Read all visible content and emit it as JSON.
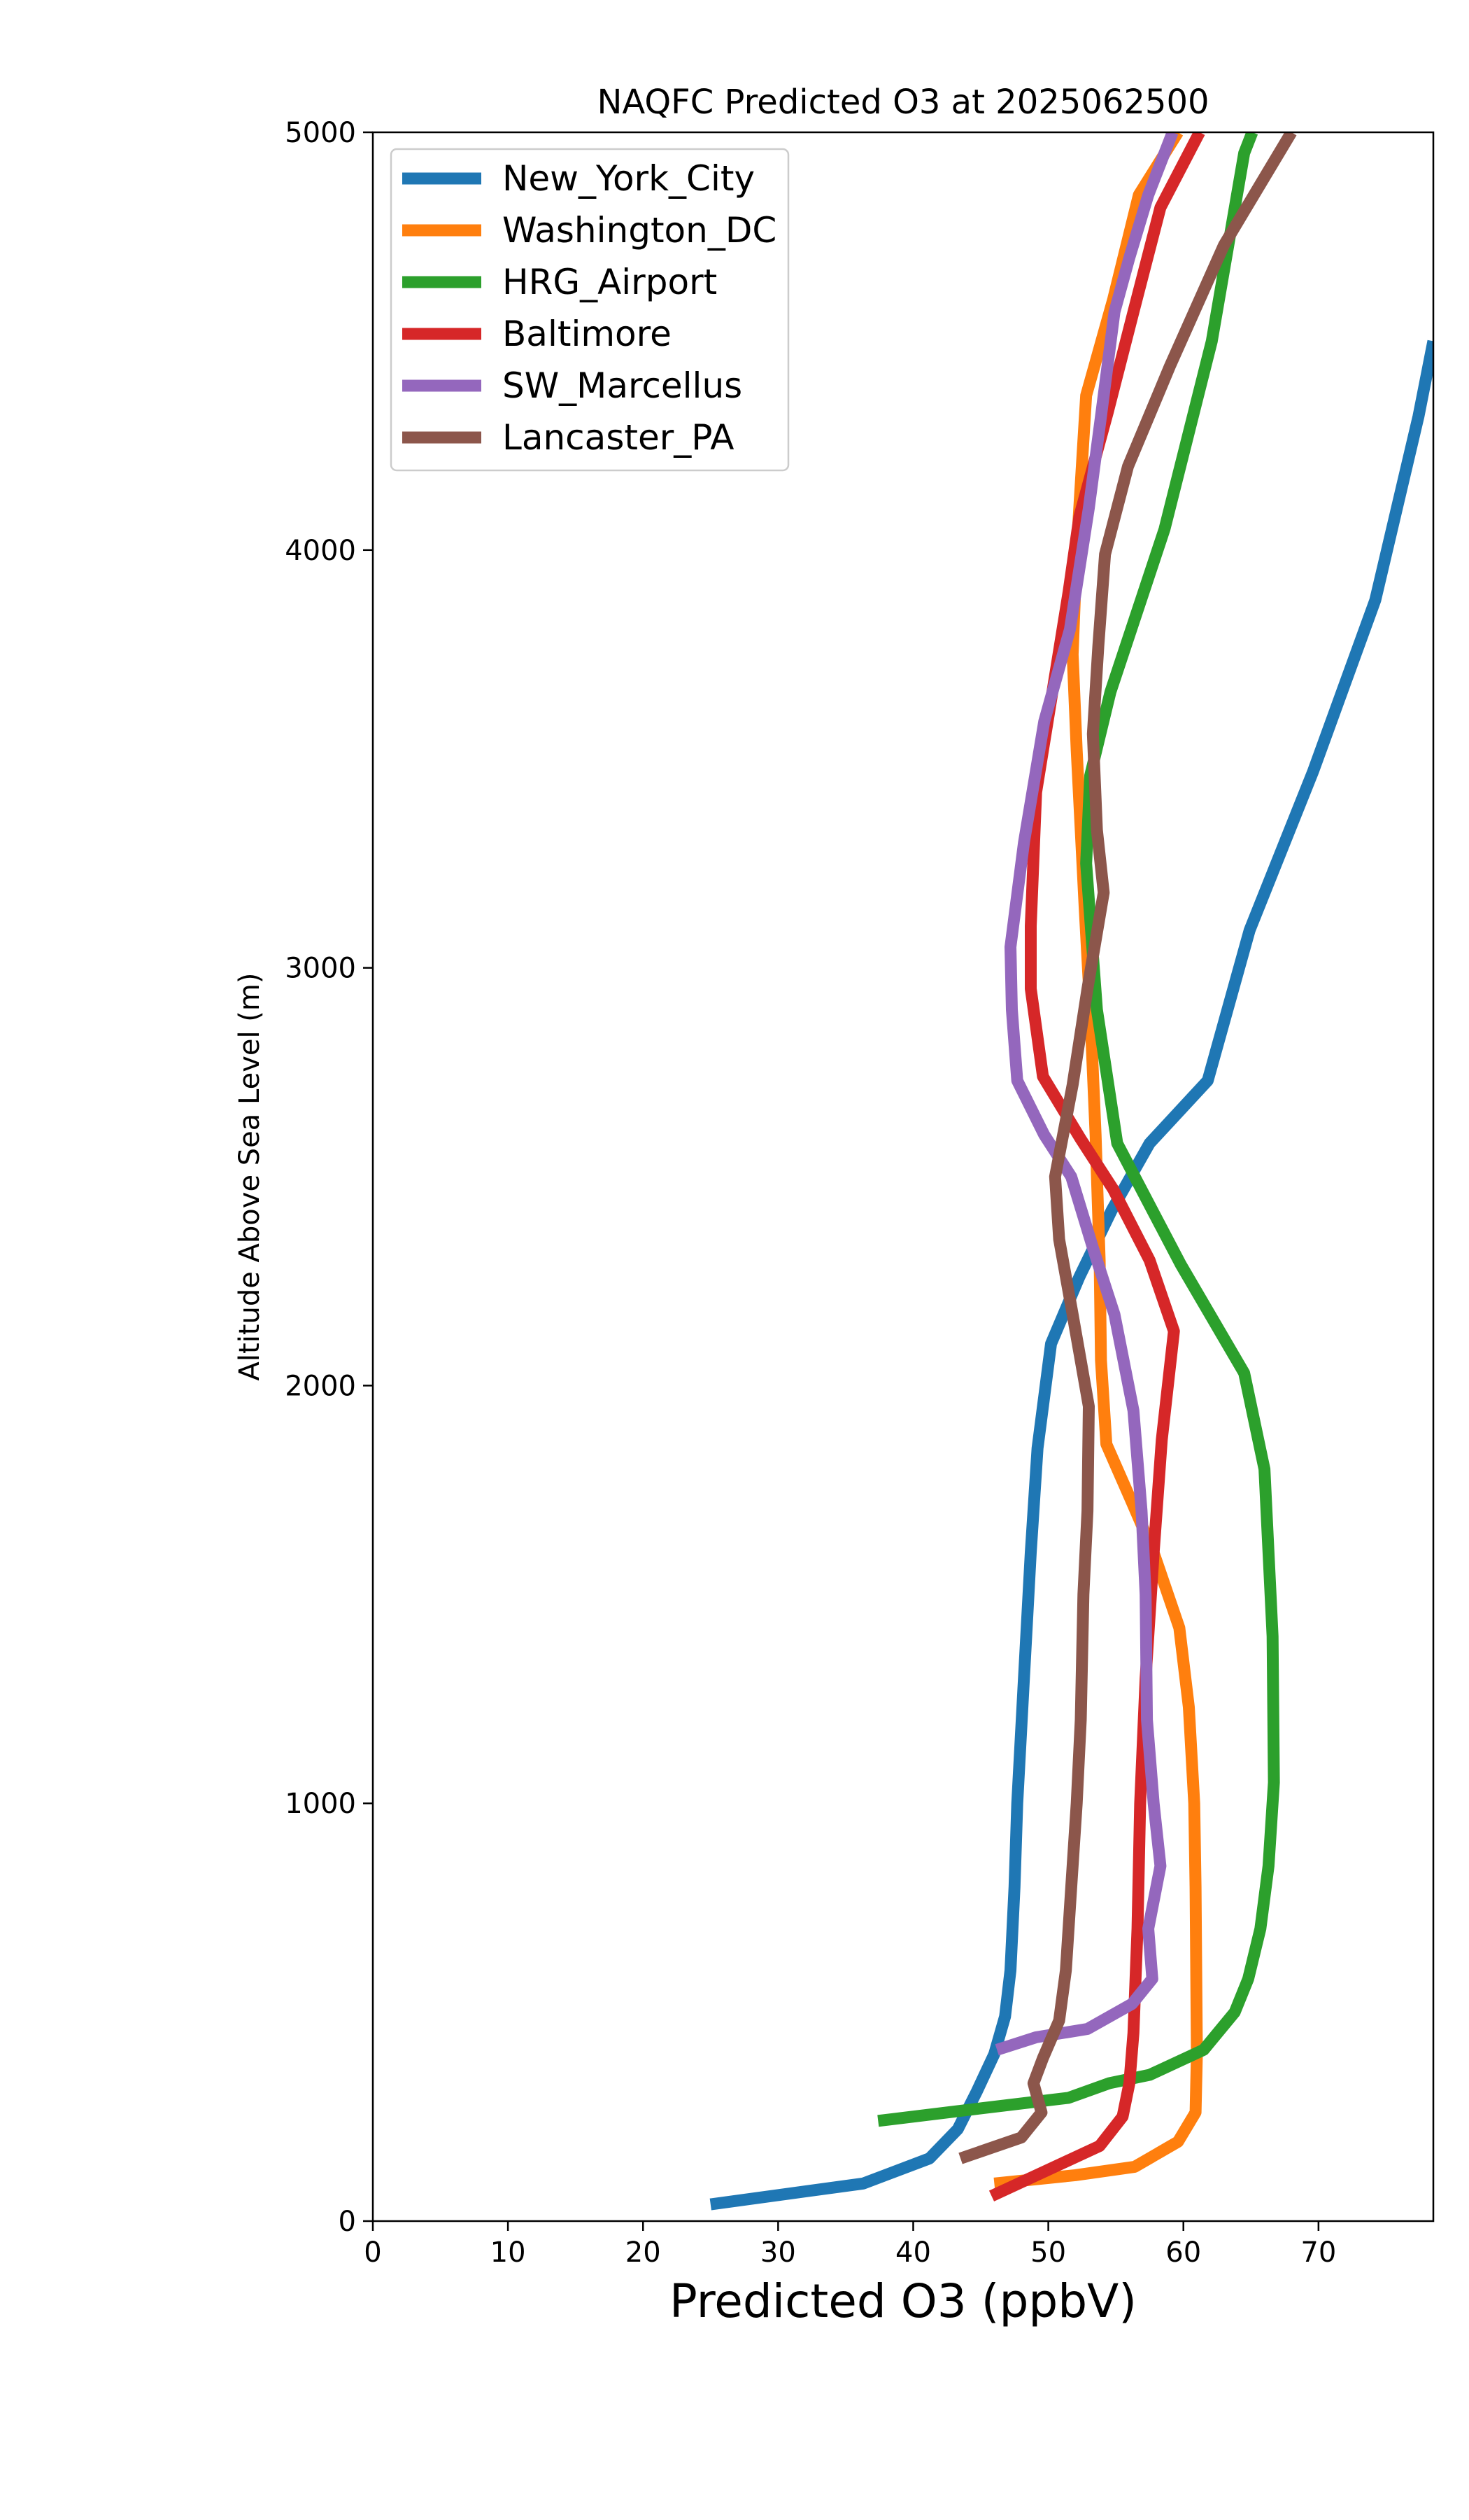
{
  "chart_data": {
    "type": "line",
    "title": "NAQFC Predicted O3 at 2025062500",
    "xlabel": "Predicted O3 (ppbV)",
    "ylabel": "Altitude Above Sea Level (m)",
    "xlim": [
      0,
      78.5
    ],
    "ylim": [
      0,
      5000
    ],
    "xticks": [
      0,
      10,
      20,
      30,
      40,
      50,
      60,
      70
    ],
    "yticks": [
      0,
      1000,
      2000,
      3000,
      4000,
      5000
    ],
    "grid": false,
    "legend": "top-left",
    "series": [
      {
        "name": "New_York_City",
        "color": "#1f77b4",
        "points": [
          [
            25,
            40
          ],
          [
            36.3,
            90
          ],
          [
            41.2,
            150
          ],
          [
            43.3,
            220
          ],
          [
            44.7,
            310
          ],
          [
            46,
            400
          ],
          [
            46.8,
            490
          ],
          [
            47.2,
            600
          ],
          [
            47.5,
            800
          ],
          [
            47.7,
            1000
          ],
          [
            48.2,
            1300
          ],
          [
            48.7,
            1600
          ],
          [
            49.2,
            1850
          ],
          [
            50.2,
            2100
          ],
          [
            52.3,
            2260
          ],
          [
            54.7,
            2420
          ],
          [
            57.5,
            2580
          ],
          [
            61.8,
            2730
          ],
          [
            64.9,
            3090
          ],
          [
            69.6,
            3470
          ],
          [
            74.2,
            3880
          ],
          [
            77.4,
            4320
          ],
          [
            78.5,
            4500
          ]
        ]
      },
      {
        "name": "Washington_DC",
        "color": "#ff7f0e",
        "points": [
          [
            46,
            90
          ],
          [
            52,
            110
          ],
          [
            56.4,
            130
          ],
          [
            59.6,
            190
          ],
          [
            60.9,
            260
          ],
          [
            61,
            400
          ],
          [
            60.9,
            800
          ],
          [
            60.8,
            1000
          ],
          [
            60.4,
            1230
          ],
          [
            59.7,
            1420
          ],
          [
            57.8,
            1600
          ],
          [
            56.2,
            1720
          ],
          [
            54.3,
            1860
          ],
          [
            53.9,
            2060
          ],
          [
            53.8,
            2300
          ],
          [
            53.5,
            2600
          ],
          [
            53.1,
            2900
          ],
          [
            52.7,
            3140
          ],
          [
            52.1,
            3520
          ],
          [
            51.8,
            3750
          ],
          [
            52.1,
            4000
          ],
          [
            52.8,
            4370
          ],
          [
            54.8,
            4600
          ],
          [
            56.7,
            4850
          ],
          [
            59.6,
            5000
          ]
        ]
      },
      {
        "name": "HRG_Airport",
        "color": "#2ca02c",
        "points": [
          [
            37.4,
            240
          ],
          [
            45,
            270
          ],
          [
            51.5,
            295
          ],
          [
            54.5,
            330
          ],
          [
            57.5,
            350
          ],
          [
            61.5,
            410
          ],
          [
            63.8,
            500
          ],
          [
            64.8,
            580
          ],
          [
            65.7,
            700
          ],
          [
            66.3,
            850
          ],
          [
            66.7,
            1050
          ],
          [
            66.6,
            1400
          ],
          [
            66.3,
            1600
          ],
          [
            66,
            1800
          ],
          [
            64.5,
            2030
          ],
          [
            59.8,
            2290
          ],
          [
            55.1,
            2580
          ],
          [
            53.6,
            2900
          ],
          [
            52.8,
            3250
          ],
          [
            53.1,
            3460
          ],
          [
            54.6,
            3660
          ],
          [
            58.6,
            4050
          ],
          [
            62.1,
            4500
          ],
          [
            64.5,
            4950
          ],
          [
            65.1,
            5000
          ]
        ]
      },
      {
        "name": "Baltimore",
        "color": "#d62728",
        "points": [
          [
            45.8,
            60
          ],
          [
            49.8,
            120
          ],
          [
            53.8,
            180
          ],
          [
            55.5,
            250
          ],
          [
            56,
            330
          ],
          [
            56.3,
            450
          ],
          [
            56.6,
            700
          ],
          [
            56.8,
            1000
          ],
          [
            57.2,
            1300
          ],
          [
            57.8,
            1600
          ],
          [
            58.4,
            1870
          ],
          [
            59.3,
            2130
          ],
          [
            57.5,
            2300
          ],
          [
            54.8,
            2470
          ],
          [
            52.4,
            2590
          ],
          [
            49.6,
            2740
          ],
          [
            48.7,
            2950
          ],
          [
            48.7,
            3100
          ],
          [
            49.1,
            3420
          ],
          [
            50.2,
            3640
          ],
          [
            51.5,
            3900
          ],
          [
            52.3,
            4080
          ],
          [
            54.4,
            4330
          ],
          [
            56.3,
            4570
          ],
          [
            58.3,
            4820
          ],
          [
            61.2,
            5000
          ]
        ]
      },
      {
        "name": "SW_Marcellus",
        "color": "#9467bd",
        "points": [
          [
            46.2,
            410
          ],
          [
            49.1,
            440
          ],
          [
            52.9,
            460
          ],
          [
            56.2,
            520
          ],
          [
            57.7,
            580
          ],
          [
            57.4,
            700
          ],
          [
            58.3,
            850
          ],
          [
            57.8,
            1000
          ],
          [
            57.3,
            1200
          ],
          [
            57.2,
            1500
          ],
          [
            56.9,
            1700
          ],
          [
            56.3,
            1940
          ],
          [
            54.9,
            2170
          ],
          [
            53.3,
            2330
          ],
          [
            51.7,
            2500
          ],
          [
            49.7,
            2600
          ],
          [
            47.7,
            2730
          ],
          [
            47.3,
            2900
          ],
          [
            47.2,
            3050
          ],
          [
            48.2,
            3300
          ],
          [
            49.7,
            3590
          ],
          [
            51.6,
            3810
          ],
          [
            53,
            4100
          ],
          [
            53.9,
            4320
          ],
          [
            54.9,
            4570
          ],
          [
            56,
            4700
          ],
          [
            57.4,
            4850
          ],
          [
            59.2,
            5000
          ]
        ]
      },
      {
        "name": "Lancaster_PA",
        "color": "#8c564b",
        "points": [
          [
            43.5,
            150
          ],
          [
            48,
            200
          ],
          [
            49.5,
            260
          ],
          [
            48.9,
            330
          ],
          [
            49.6,
            390
          ],
          [
            50.8,
            480
          ],
          [
            51.3,
            600
          ],
          [
            51.7,
            800
          ],
          [
            52.1,
            1000
          ],
          [
            52.4,
            1200
          ],
          [
            52.6,
            1500
          ],
          [
            52.9,
            1700
          ],
          [
            53,
            1950
          ],
          [
            51.8,
            2170
          ],
          [
            50.8,
            2350
          ],
          [
            50.5,
            2500
          ],
          [
            51.8,
            2720
          ],
          [
            52.9,
            2950
          ],
          [
            54.1,
            3180
          ],
          [
            53.6,
            3330
          ],
          [
            53.3,
            3560
          ],
          [
            53.7,
            3770
          ],
          [
            54.2,
            3990
          ],
          [
            55.9,
            4200
          ],
          [
            59,
            4440
          ],
          [
            63,
            4730
          ],
          [
            68,
            5000
          ]
        ]
      }
    ]
  }
}
